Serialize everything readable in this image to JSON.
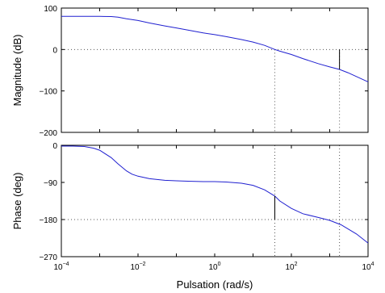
{
  "chart_data": [
    {
      "type": "line",
      "panel": "magnitude",
      "ylabel": "Magnitude (dB)",
      "xscale": "log",
      "xlim": [
        0.0001,
        10000
      ],
      "ylim": [
        -200,
        100
      ],
      "yticks": [
        -200,
        -100,
        0,
        100
      ],
      "ytick_labels": [
        "−200",
        "−100",
        "0",
        "100"
      ],
      "reference_lines": {
        "y": [
          0
        ],
        "x": [
          37,
          1800
        ]
      },
      "margin_marker": {
        "x": 1800,
        "y_from": -48,
        "y_to": 0
      },
      "series": [
        {
          "x": [
            0.0001,
            0.0002,
            0.0005,
            0.001,
            0.002,
            0.003,
            0.005,
            0.01,
            0.02,
            0.05,
            0.1,
            0.2,
            0.5,
            1,
            2,
            5,
            10,
            20,
            37,
            50,
            100,
            200,
            500,
            1000,
            1800,
            3000,
            10000
          ],
          "y": [
            80,
            80,
            80,
            80,
            79.5,
            78,
            74,
            70,
            64,
            57,
            52,
            47,
            40,
            36,
            31,
            24,
            18,
            10,
            0,
            -4,
            -12,
            -22,
            -34,
            -42,
            -48,
            -56,
            -78
          ]
        }
      ]
    },
    {
      "type": "line",
      "panel": "phase",
      "xlabel": "Pulsation (rad/s)",
      "ylabel": "Phase (deg)",
      "xscale": "log",
      "xlim": [
        0.0001,
        10000
      ],
      "ylim": [
        -270,
        0
      ],
      "yticks": [
        -270,
        -180,
        -90,
        0
      ],
      "ytick_labels": [
        "−270",
        "−180",
        "−90",
        "0"
      ],
      "xticks": [
        0.0001,
        0.01,
        1,
        100,
        10000
      ],
      "xtick_labels": [
        [
          "10",
          "−4"
        ],
        [
          "10",
          "−2"
        ],
        [
          "10",
          "0"
        ],
        [
          "10",
          "2"
        ],
        [
          "10",
          "4"
        ]
      ],
      "reference_lines": {
        "y": [
          -180
        ],
        "x": [
          37,
          1800
        ]
      },
      "margin_marker": {
        "x": 37,
        "y_from": -180,
        "y_to": -123
      },
      "series": [
        {
          "x": [
            0.0001,
            0.0002,
            0.0004,
            0.0007,
            0.001,
            0.002,
            0.003,
            0.005,
            0.007,
            0.01,
            0.02,
            0.05,
            0.1,
            0.2,
            0.5,
            1,
            2,
            5,
            10,
            20,
            37,
            50,
            100,
            200,
            500,
            1000,
            2000,
            5000,
            10000
          ],
          "y": [
            -2,
            -2,
            -3,
            -7,
            -12,
            -30,
            -45,
            -62,
            -70,
            -75,
            -81,
            -85,
            -86,
            -87,
            -88,
            -88,
            -89,
            -92,
            -97,
            -108,
            -123,
            -135,
            -153,
            -166,
            -175,
            -182,
            -193,
            -215,
            -237
          ]
        }
      ]
    }
  ]
}
